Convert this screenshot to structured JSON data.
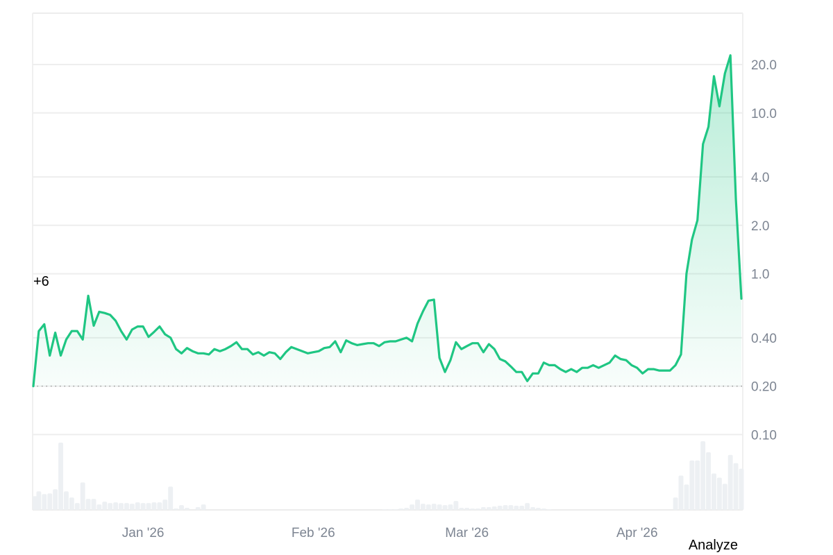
{
  "chart_data": {
    "type": "line",
    "yscale": "log",
    "ylim": [
      0.034,
      41.7
    ],
    "xlim": [
      "2025-12-12",
      "2026-04-20"
    ],
    "grid": true,
    "yticks": [
      20,
      10,
      4,
      2,
      1,
      0.4,
      0.2,
      0.1
    ],
    "ytick_labels": [
      "20.0",
      "10.0",
      "4.0",
      "2.0",
      "1.0",
      "0.40",
      "0.20",
      "0.10"
    ],
    "xticks": [
      "2026-01-01",
      "2026-02-01",
      "2026-03-01",
      "2026-04-01"
    ],
    "xtick_labels": [
      "Jan '26",
      "Feb '26",
      "Mar '26",
      "Apr '26"
    ],
    "reference_line": 0.2,
    "annotation": "+6",
    "line_color": "#1fc683",
    "volume_color": "#edf0f3",
    "dates": [
      "2025-12-12",
      "2025-12-13",
      "2025-12-14",
      "2025-12-15",
      "2025-12-16",
      "2025-12-17",
      "2025-12-18",
      "2025-12-19",
      "2025-12-20",
      "2025-12-21",
      "2025-12-22",
      "2025-12-23",
      "2025-12-24",
      "2025-12-25",
      "2025-12-26",
      "2025-12-27",
      "2025-12-28",
      "2025-12-29",
      "2025-12-30",
      "2025-12-31",
      "2026-01-01",
      "2026-01-02",
      "2026-01-03",
      "2026-01-04",
      "2026-01-05",
      "2026-01-06",
      "2026-01-07",
      "2026-01-08",
      "2026-01-09",
      "2026-01-10",
      "2026-01-11",
      "2026-01-12",
      "2026-01-13",
      "2026-01-14",
      "2026-01-15",
      "2026-01-16",
      "2026-01-17",
      "2026-01-18",
      "2026-01-19",
      "2026-01-20",
      "2026-01-21",
      "2026-01-22",
      "2026-01-23",
      "2026-01-24",
      "2026-01-25",
      "2026-01-26",
      "2026-01-27",
      "2026-01-28",
      "2026-01-29",
      "2026-01-30",
      "2026-01-31",
      "2026-02-01",
      "2026-02-02",
      "2026-02-03",
      "2026-02-04",
      "2026-02-05",
      "2026-02-06",
      "2026-02-07",
      "2026-02-08",
      "2026-02-09",
      "2026-02-10",
      "2026-02-11",
      "2026-02-12",
      "2026-02-13",
      "2026-02-14",
      "2026-02-15",
      "2026-02-16",
      "2026-02-17",
      "2026-02-18",
      "2026-02-19",
      "2026-02-20",
      "2026-02-21",
      "2026-02-22",
      "2026-02-23",
      "2026-02-24",
      "2026-02-25",
      "2026-02-26",
      "2026-02-27",
      "2026-02-28",
      "2026-03-01",
      "2026-03-02",
      "2026-03-03",
      "2026-03-04",
      "2026-03-05",
      "2026-03-06",
      "2026-03-07",
      "2026-03-08",
      "2026-03-09",
      "2026-03-10",
      "2026-03-11",
      "2026-03-12",
      "2026-03-13",
      "2026-03-14",
      "2026-03-15",
      "2026-03-16",
      "2026-03-17",
      "2026-03-18",
      "2026-03-19",
      "2026-03-20",
      "2026-03-21",
      "2026-03-22",
      "2026-03-23",
      "2026-03-24",
      "2026-03-25",
      "2026-03-26",
      "2026-03-27",
      "2026-03-28",
      "2026-03-29",
      "2026-03-30",
      "2026-03-31",
      "2026-04-01",
      "2026-04-02",
      "2026-04-03",
      "2026-04-04",
      "2026-04-05",
      "2026-04-06",
      "2026-04-07",
      "2026-04-08",
      "2026-04-09",
      "2026-04-10",
      "2026-04-11",
      "2026-04-12",
      "2026-04-13",
      "2026-04-14",
      "2026-04-15",
      "2026-04-16",
      "2026-04-17",
      "2026-04-18",
      "2026-04-19",
      "2026-04-20"
    ],
    "values": [
      0.2,
      0.44,
      0.485,
      0.31,
      0.43,
      0.31,
      0.39,
      0.44,
      0.44,
      0.39,
      0.73,
      0.475,
      0.58,
      0.57,
      0.555,
      0.51,
      0.44,
      0.39,
      0.45,
      0.47,
      0.47,
      0.405,
      0.435,
      0.47,
      0.42,
      0.4,
      0.34,
      0.32,
      0.345,
      0.33,
      0.32,
      0.32,
      0.315,
      0.34,
      0.33,
      0.34,
      0.355,
      0.375,
      0.34,
      0.34,
      0.315,
      0.325,
      0.31,
      0.325,
      0.32,
      0.295,
      0.325,
      0.35,
      0.34,
      0.33,
      0.32,
      0.325,
      0.33,
      0.345,
      0.35,
      0.38,
      0.325,
      0.385,
      0.37,
      0.36,
      0.365,
      0.37,
      0.37,
      0.355,
      0.375,
      0.38,
      0.38,
      0.39,
      0.4,
      0.38,
      0.49,
      0.585,
      0.68,
      0.69,
      0.3,
      0.245,
      0.29,
      0.375,
      0.34,
      0.355,
      0.37,
      0.37,
      0.325,
      0.365,
      0.34,
      0.295,
      0.285,
      0.265,
      0.245,
      0.245,
      0.215,
      0.24,
      0.24,
      0.28,
      0.27,
      0.27,
      0.255,
      0.245,
      0.255,
      0.245,
      0.26,
      0.26,
      0.27,
      0.26,
      0.27,
      0.28,
      0.31,
      0.295,
      0.29,
      0.27,
      0.26,
      0.24,
      0.255,
      0.255,
      0.25,
      0.25,
      0.25,
      0.27,
      0.315,
      1.0,
      1.63,
      2.15,
      6.4,
      8.2,
      16.9,
      11.0,
      17.6,
      22.8,
      2.9,
      0.7
    ],
    "volume_relative": [
      20,
      27,
      23,
      24,
      30,
      98,
      27,
      18,
      10,
      40,
      16,
      16,
      8,
      12,
      10,
      11,
      10,
      10,
      9,
      11,
      10,
      10,
      11,
      11,
      15,
      34,
      2,
      7,
      3,
      0,
      4,
      8,
      0,
      0,
      0,
      0,
      0,
      0,
      0,
      0,
      0,
      0,
      0,
      0,
      0,
      0,
      0,
      0,
      0,
      0,
      0,
      0,
      0,
      0,
      0,
      0,
      0,
      0,
      0,
      0,
      0,
      0,
      0,
      0,
      1,
      1,
      1,
      2,
      3,
      8,
      15,
      9,
      8,
      9,
      8,
      7,
      8,
      13,
      3,
      3,
      2,
      2,
      4,
      4,
      5,
      6,
      7,
      7,
      6,
      6,
      10,
      4,
      3,
      2,
      1,
      0,
      0,
      0,
      0,
      0,
      0,
      0,
      0,
      0,
      0,
      0,
      0,
      0,
      0,
      0,
      0,
      0,
      0,
      0,
      0,
      0,
      0,
      18,
      50,
      37,
      72,
      72,
      100,
      84,
      53,
      47,
      38,
      80,
      68,
      60
    ]
  },
  "footer": {
    "analyze_label": "Analyze"
  }
}
